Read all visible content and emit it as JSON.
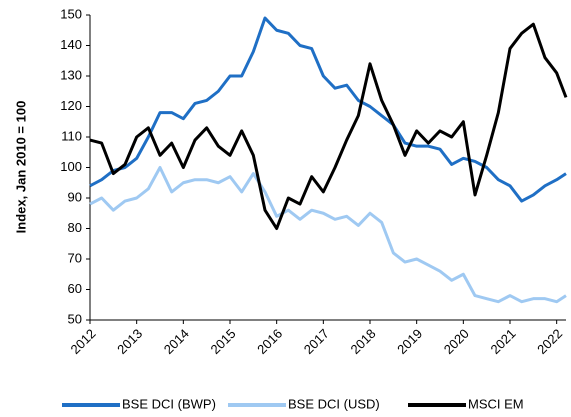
{
  "chart_data": {
    "type": "line",
    "y_label": "Index, Jan 2010 = 100",
    "x": [
      2012,
      2012.25,
      2012.5,
      2012.75,
      2013,
      2013.25,
      2013.5,
      2013.75,
      2014,
      2014.25,
      2014.5,
      2014.75,
      2015,
      2015.25,
      2015.5,
      2015.75,
      2016,
      2016.25,
      2016.5,
      2016.75,
      2017,
      2017.25,
      2017.5,
      2017.75,
      2018,
      2018.25,
      2018.5,
      2018.75,
      2019,
      2019.25,
      2019.5,
      2019.75,
      2020,
      2020.25,
      2020.5,
      2020.75,
      2021,
      2021.25,
      2021.5,
      2021.75,
      2022,
      2022.2
    ],
    "series": [
      {
        "name": "BSE DCI (BWP)",
        "color": "#1f6fc5",
        "values": [
          94,
          96,
          99,
          100,
          103,
          110,
          118,
          118,
          116,
          121,
          122,
          125,
          130,
          130,
          138,
          149,
          145,
          144,
          140,
          139,
          130,
          126,
          127,
          122,
          120,
          117,
          114,
          108,
          107,
          107,
          106,
          101,
          103,
          102,
          100,
          96,
          94,
          89,
          91,
          94,
          96,
          98
        ]
      },
      {
        "name": "BSE DCI (USD)",
        "color": "#9fc9f2",
        "values": [
          88,
          90,
          86,
          89,
          90,
          93,
          100,
          92,
          95,
          96,
          96,
          95,
          97,
          92,
          98,
          92,
          84,
          86,
          83,
          86,
          85,
          83,
          84,
          81,
          85,
          82,
          72,
          69,
          70,
          68,
          66,
          63,
          65,
          58,
          57,
          56,
          58,
          56,
          57,
          57,
          56,
          58
        ]
      },
      {
        "name": "MSCI EM",
        "color": "#000000",
        "values": [
          109,
          108,
          98,
          101,
          110,
          113,
          104,
          108,
          100,
          109,
          113,
          107,
          104,
          112,
          104,
          86,
          80,
          90,
          88,
          97,
          92,
          100,
          109,
          117,
          134,
          122,
          114,
          104,
          112,
          108,
          112,
          110,
          115,
          91,
          104,
          118,
          139,
          144,
          147,
          136,
          131,
          123
        ]
      }
    ],
    "xlim": [
      2012,
      2022.2
    ],
    "xticks": [
      2012,
      2013,
      2014,
      2015,
      2016,
      2017,
      2018,
      2019,
      2020,
      2021,
      2022
    ],
    "ylim": [
      50,
      150
    ],
    "yticks": [
      50,
      60,
      70,
      80,
      90,
      100,
      110,
      120,
      130,
      140,
      150
    ],
    "grid": false
  }
}
